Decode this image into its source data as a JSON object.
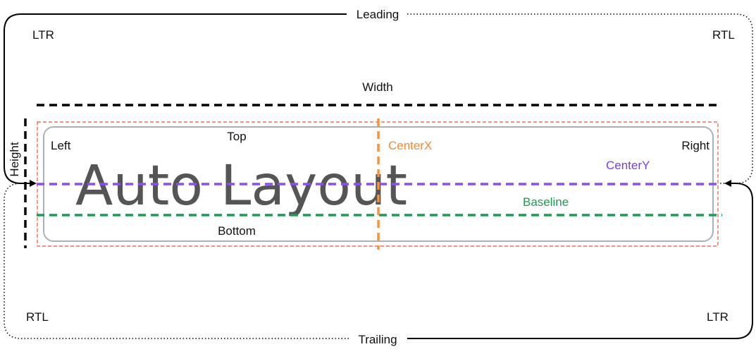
{
  "labels": {
    "leading": "Leading",
    "trailing": "Trailing",
    "ltr_top": "LTR",
    "rtl_top": "RTL",
    "rtl_bottom": "RTL",
    "ltr_bottom": "LTR",
    "width": "Width",
    "height": "Height",
    "top": "Top",
    "bottom": "Bottom",
    "left": "Left",
    "right": "Right",
    "centerx": "CenterX",
    "centery": "CenterY",
    "baseline": "Baseline",
    "main_text": "Auto Layout"
  },
  "colors": {
    "width_line": "#000000",
    "height_line": "#000000",
    "outer_rect": "#e8553a",
    "inner_rect": "#a9b0bc",
    "centerx_line": "#f7933c",
    "centery_line": "#8a4ff0",
    "baseline_line": "#1f9a55",
    "main_text": "#555555"
  }
}
